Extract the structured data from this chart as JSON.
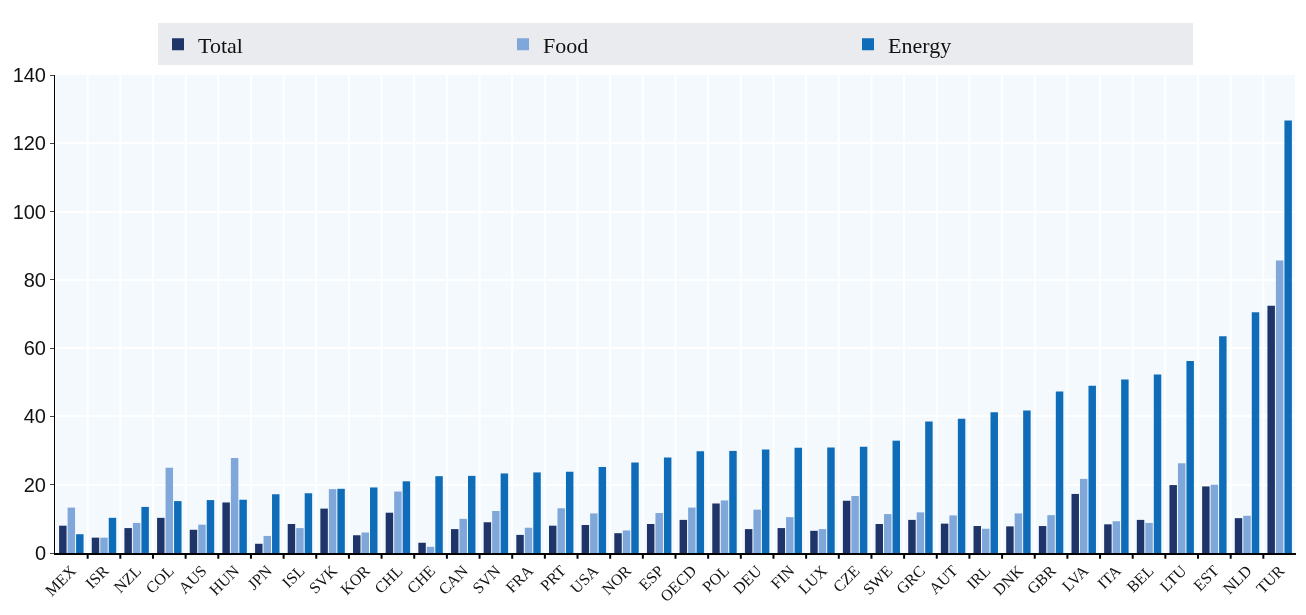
{
  "chart_data": {
    "type": "bar",
    "categories": [
      "MEX",
      "ISR",
      "NZL",
      "COL",
      "AUS",
      "HUN",
      "JPN",
      "ISL",
      "SVK",
      "KOR",
      "CHL",
      "CHE",
      "CAN",
      "SVN",
      "FRA",
      "PRT",
      "USA",
      "NOR",
      "ESP",
      "OECD",
      "POL",
      "DEU",
      "FIN",
      "LUX",
      "CZE",
      "SWE",
      "GRC",
      "AUT",
      "IRL",
      "DNK",
      "GBR",
      "LVA",
      "ITA",
      "BEL",
      "LTU",
      "EST",
      "NLD",
      "TUR"
    ],
    "series": [
      {
        "name": "Total",
        "color": "#1f3468",
        "values": [
          8,
          4.5,
          7.3,
          10.3,
          6.8,
          14.8,
          2.7,
          8.5,
          13,
          5.2,
          11.8,
          3,
          7,
          9,
          5.3,
          8,
          8.2,
          5.8,
          8.5,
          9.7,
          14.5,
          7,
          7.3,
          6.5,
          15.3,
          8.5,
          9.7,
          8.6,
          7.9,
          7.8,
          7.9,
          17.3,
          8.4,
          9.7,
          19.9,
          19.5,
          10.2,
          72.4
        ]
      },
      {
        "name": "Food",
        "color": "#7fa7d9",
        "values": [
          13.3,
          4.5,
          8.8,
          25,
          8.3,
          27.8,
          5,
          7.3,
          18.7,
          6,
          18,
          1.8,
          10,
          12.3,
          7.4,
          13.1,
          11.6,
          6.6,
          11.7,
          13.3,
          15.4,
          12.7,
          10.5,
          7,
          16.7,
          11.4,
          11.9,
          11,
          7.1,
          11.6,
          11.1,
          21.7,
          9.3,
          8.8,
          26.3,
          20,
          10.9,
          85.7
        ]
      },
      {
        "name": "Energy",
        "color": "#0f6cb8",
        "values": [
          5.5,
          10.3,
          13.5,
          15.2,
          15.5,
          15.6,
          17.2,
          17.5,
          18.8,
          19.2,
          21,
          22.5,
          22.6,
          23.3,
          23.6,
          23.8,
          25.2,
          26.5,
          28,
          29.8,
          29.9,
          30.3,
          30.8,
          30.9,
          31.1,
          32.9,
          38.5,
          39.3,
          41.2,
          41.7,
          47.3,
          49,
          50.8,
          52.3,
          56.2,
          63.5,
          70.5,
          126.7
        ]
      }
    ],
    "ylim": [
      0,
      140
    ],
    "yticks": [
      0,
      20,
      40,
      60,
      80,
      100,
      120,
      140
    ],
    "grid": true,
    "legend": "top"
  }
}
